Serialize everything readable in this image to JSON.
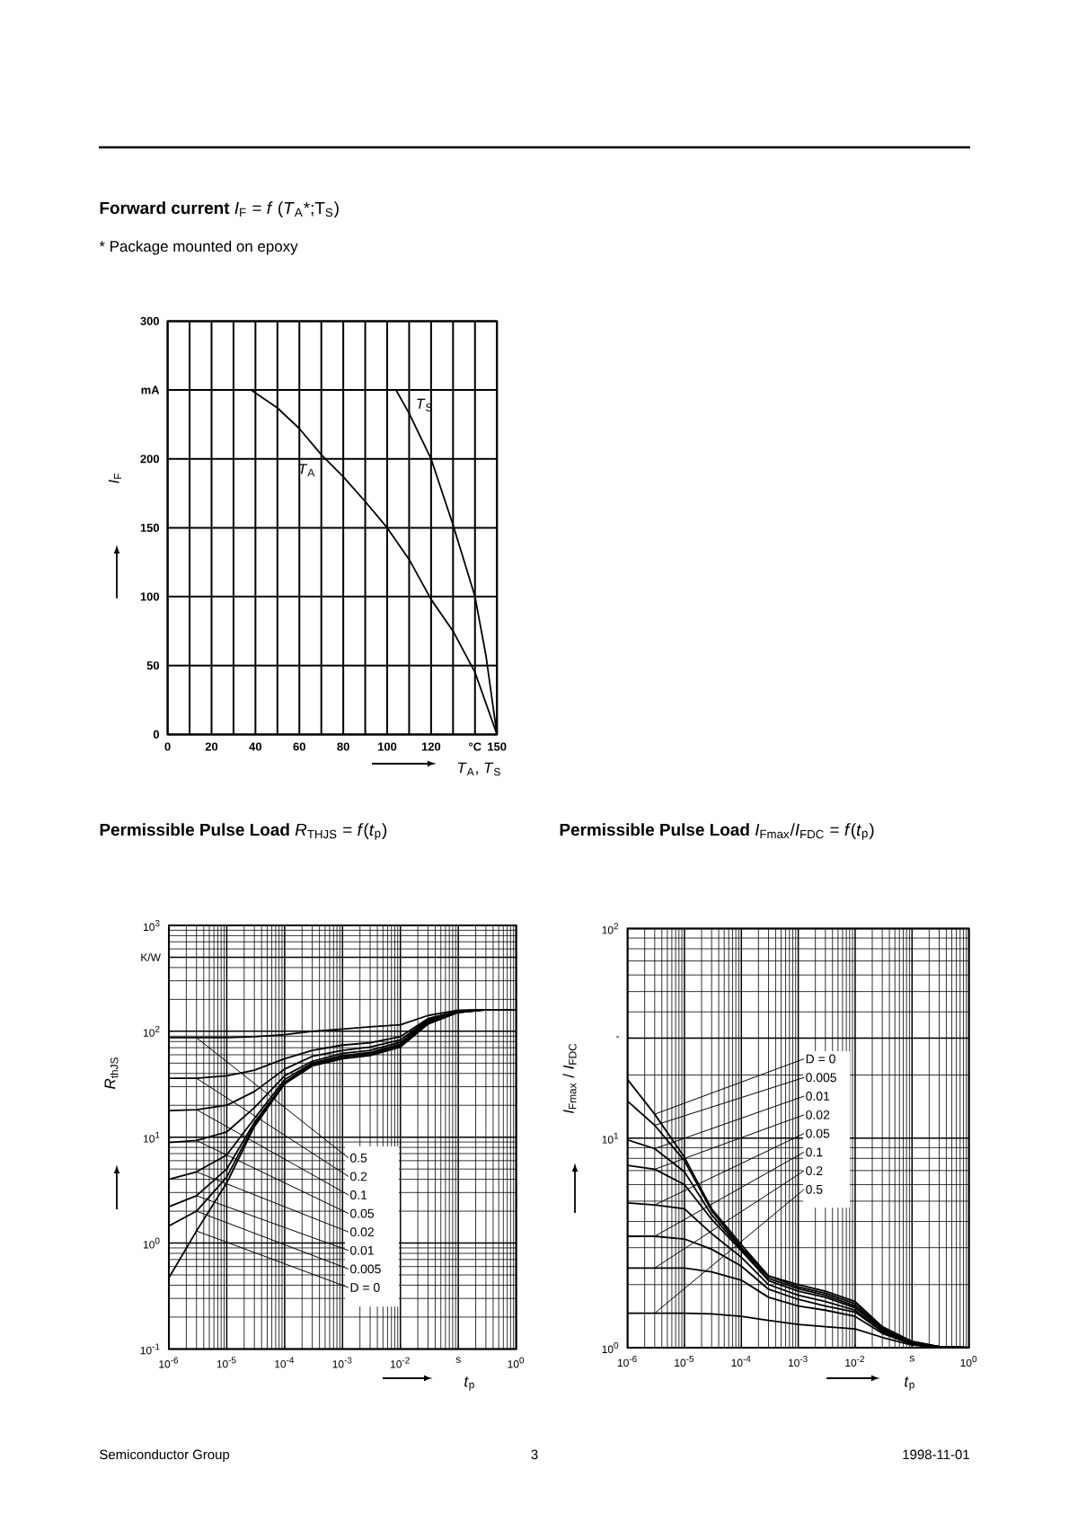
{
  "chart_data": [
    {
      "type": "line",
      "title": "**Forward current** *I*$_{F}$ = *f* (*T*$_{A}$*;T$_{S}$)",
      "subtitle": "* Package mounted on epoxy",
      "xlabel": "*T*$_{A}$, *T*$_{S}$",
      "ylabel": "*I*$_{F}$",
      "xlim": [
        0,
        150
      ],
      "ylim": [
        0,
        300
      ],
      "xticks": [
        0,
        20,
        40,
        60,
        80,
        100,
        120,
        {
          "value": 140,
          "label": "°C"
        },
        150
      ],
      "yticks": [
        0,
        50,
        100,
        150,
        200,
        {
          "value": 250,
          "label": "mA"
        },
        300
      ],
      "grid": true,
      "series": [
        {
          "name": "*T*$_{A}$",
          "color": "#000000",
          "x": [
            38,
            50,
            60,
            70,
            80,
            90,
            100,
            110,
            120,
            130,
            140,
            150
          ],
          "values": [
            250,
            237,
            222,
            203,
            187,
            169,
            150,
            127,
            98,
            75,
            45,
            0
          ]
        },
        {
          "name": "*T*$_{S}$",
          "color": "#000000",
          "x": [
            104,
            110,
            120,
            130,
            140,
            145,
            150
          ],
          "values": [
            250,
            233,
            200,
            152,
            100,
            57,
            0
          ]
        }
      ]
    },
    {
      "type": "line",
      "title": "**Permissible Pulse Load** *R*$_{THJS}$ = *f*(*t*$_{p}$)",
      "xlabel": "*t*$_{p}$",
      "ylabel": "*R*$_{thJS}$",
      "log": "xy",
      "xlim": [
        1e-06,
        1
      ],
      "ylim": [
        0.1,
        1000
      ],
      "xticks": [
        {
          "value": 1e-06,
          "label": "10$^{-6}$"
        },
        {
          "value": 1e-05,
          "label": "10$^{-5}$"
        },
        {
          "value": 0.0001,
          "label": "10$^{-4}$"
        },
        {
          "value": 0.001,
          "label": "10$^{-3}$"
        },
        {
          "value": 0.01,
          "label": "10$^{-2}$"
        },
        {
          "value": 0.1,
          "label": "s"
        },
        {
          "value": 1,
          "label": "10$^{0}$"
        }
      ],
      "yticks": [
        {
          "value": 0.1,
          "label": "10$^{-1}$"
        },
        {
          "value": 1,
          "label": "10$^{0}$"
        },
        {
          "value": 10,
          "label": "10$^{1}$"
        },
        {
          "value": 100,
          "label": "10$^{2}$"
        },
        {
          "value": 500,
          "label": "K/W"
        },
        {
          "value": 1000,
          "label": "10$^{3}$"
        }
      ],
      "grid": true,
      "x": [
        1e-06,
        3e-06,
        1e-05,
        3e-05,
        0.0001,
        0.0003,
        0.001,
        0.003,
        0.01,
        0.03,
        0.1,
        0.3,
        1
      ],
      "series": [
        {
          "name": "0.5",
          "color": "#000000",
          "values": [
            87,
            87,
            87,
            89,
            93,
            100,
            105,
            110,
            115,
            141,
            158,
            160,
            160
          ]
        },
        {
          "name": "0.2",
          "color": "#000000",
          "values": [
            36,
            36,
            38,
            43,
            55,
            66,
            74,
            78,
            89,
            132,
            155,
            160,
            160
          ]
        },
        {
          "name": "0.1",
          "color": "#000000",
          "values": [
            17.8,
            18.2,
            20,
            27,
            44,
            58,
            66,
            71,
            83,
            129,
            155,
            160,
            160
          ]
        },
        {
          "name": "0.05",
          "color": "#000000",
          "values": [
            8.9,
            9.3,
            11.2,
            19,
            38,
            52,
            62,
            66,
            79,
            126,
            155,
            160,
            160
          ]
        },
        {
          "name": "0.02",
          "color": "#000000",
          "values": [
            4.0,
            4.7,
            6.8,
            15,
            35,
            50,
            59,
            63,
            76,
            123,
            155,
            160,
            160
          ]
        },
        {
          "name": "0.01",
          "color": "#000000",
          "values": [
            2.2,
            2.8,
            5.0,
            13.8,
            33,
            49,
            58,
            62,
            74,
            120,
            151,
            160,
            160
          ]
        },
        {
          "name": "0.005",
          "color": "#000000",
          "values": [
            1.45,
            2.0,
            4.2,
            13.2,
            32,
            48,
            56,
            60,
            72,
            120,
            151,
            160,
            160
          ]
        },
        {
          "name": "D = 0",
          "color": "#000000",
          "values": [
            0.47,
            1.3,
            3.7,
            12.6,
            32,
            47,
            55,
            59,
            71,
            117,
            151,
            160,
            160
          ]
        }
      ]
    },
    {
      "type": "line",
      "title": "**Permissible Pulse Load** *I*$_{Fmax}$/*I*$_{FDC}$ = *f*(*t*$_{p}$)",
      "xlabel": "*t*$_{p}$",
      "ylabel": "*I*$_{Fmax}$ / *I*$_{FDC}$",
      "log": "xy",
      "xlim": [
        1e-06,
        1
      ],
      "ylim": [
        1,
        100
      ],
      "xticks": [
        {
          "value": 1e-06,
          "label": "10$^{-6}$"
        },
        {
          "value": 1e-05,
          "label": "10$^{-5}$"
        },
        {
          "value": 0.0001,
          "label": "10$^{-4}$"
        },
        {
          "value": 0.001,
          "label": "10$^{-3}$"
        },
        {
          "value": 0.01,
          "label": "10$^{-2}$"
        },
        {
          "value": 0.1,
          "label": "s"
        },
        {
          "value": 1,
          "label": "10$^{0}$"
        }
      ],
      "yticks": [
        {
          "value": 1,
          "label": "10$^{0}$"
        },
        {
          "value": 10,
          "label": "10$^{1}$"
        },
        {
          "value": 30,
          "label": "-"
        },
        {
          "value": 100,
          "label": "10$^{2}$"
        }
      ],
      "grid": true,
      "x": [
        1e-06,
        3e-06,
        1e-05,
        3e-05,
        0.0001,
        0.0003,
        0.001,
        0.003,
        0.01,
        0.03,
        0.1,
        0.3,
        1
      ],
      "series": [
        {
          "name": "D = 0",
          "color": "#000000",
          "values": [
            19,
            13,
            8.1,
            4.6,
            3.1,
            2.2,
            2.0,
            1.86,
            1.66,
            1.26,
            1.07,
            1.01,
            1.0
          ]
        },
        {
          "name": "0.005",
          "color": "#000000",
          "values": [
            15,
            11.5,
            7.8,
            4.5,
            3.0,
            2.2,
            1.95,
            1.82,
            1.62,
            1.24,
            1.07,
            1.01,
            1.0
          ]
        },
        {
          "name": "0.01",
          "color": "#000000",
          "values": [
            9.8,
            8.9,
            6.9,
            4.3,
            2.95,
            2.14,
            1.91,
            1.78,
            1.58,
            1.23,
            1.06,
            1.01,
            1.0
          ]
        },
        {
          "name": "0.02",
          "color": "#000000",
          "values": [
            7.4,
            7.1,
            6.0,
            4.1,
            2.9,
            2.09,
            1.86,
            1.74,
            1.55,
            1.22,
            1.06,
            1.01,
            1.0
          ]
        },
        {
          "name": "0.05",
          "color": "#000000",
          "values": [
            4.9,
            4.8,
            4.6,
            3.5,
            2.7,
            2.0,
            1.78,
            1.66,
            1.51,
            1.2,
            1.05,
            1.01,
            1.0
          ]
        },
        {
          "name": "0.1",
          "color": "#000000",
          "values": [
            3.4,
            3.4,
            3.3,
            2.95,
            2.45,
            1.9,
            1.7,
            1.58,
            1.48,
            1.19,
            1.05,
            1.01,
            1.0
          ]
        },
        {
          "name": "0.2",
          "color": "#000000",
          "values": [
            2.4,
            2.4,
            2.4,
            2.3,
            2.1,
            1.74,
            1.58,
            1.51,
            1.41,
            1.17,
            1.04,
            1.01,
            1.0
          ]
        },
        {
          "name": "0.5",
          "color": "#000000",
          "values": [
            1.46,
            1.46,
            1.46,
            1.45,
            1.41,
            1.35,
            1.29,
            1.26,
            1.23,
            1.12,
            1.03,
            1.0,
            1.0
          ]
        }
      ],
      "annotations": [
        "Semiconductor Group",
        "3",
        "1998-11-01"
      ]
    }
  ]
}
